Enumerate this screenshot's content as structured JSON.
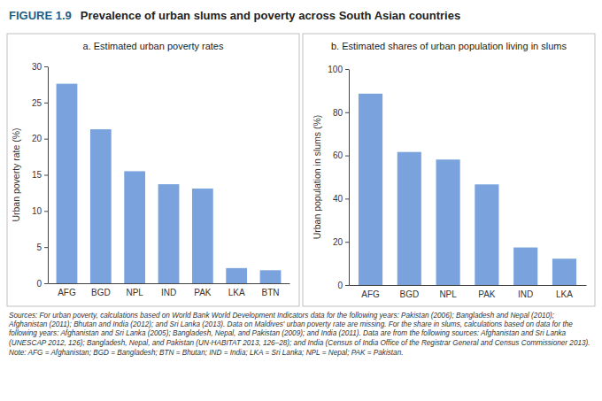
{
  "figure_number": "FIGURE 1.9",
  "figure_title": "Prevalence of urban slums and poverty across South Asian countries",
  "chart_data": [
    {
      "type": "bar",
      "title": "a. Estimated urban poverty rates",
      "y_label": "Urban poverty rate (%)",
      "categories": [
        "AFG",
        "BGD",
        "NPL",
        "IND",
        "PAK",
        "LKA",
        "BTN"
      ],
      "values": [
        27.6,
        21.3,
        15.5,
        13.7,
        13.1,
        2.1,
        1.8
      ],
      "color": "#7aa3dd",
      "ylim": [
        0,
        30
      ],
      "yticks": [
        0,
        5,
        10,
        15,
        20,
        25,
        30
      ],
      "grid": false
    },
    {
      "type": "bar",
      "title": "b. Estimated shares of urban population living in slums",
      "y_label": "Urban population in slums (%)",
      "categories": [
        "AFG",
        "BGD",
        "NPL",
        "PAK",
        "IND",
        "LKA"
      ],
      "values": [
        88.6,
        61.6,
        58.1,
        46.6,
        17.4,
        12.2
      ],
      "color": "#7aa3dd",
      "ylim": [
        0,
        100
      ],
      "yticks": [
        0,
        20,
        40,
        60,
        80,
        100
      ],
      "grid": false
    }
  ],
  "sources": "Sources: For urban poverty, calculations based on World Bank World Development Indicators data for the following years: Pakistan (2006); Bangladesh and Nepal (2010); Afghanistan (2011); Bhutan and India (2012); and Sri Lanka (2013). Data on Maldives' urban poverty rate are missing. For the share in slums, calculations based on data for the following years: Afghanistan and Sri Lanka (2005); Bangladesh, Nepal, and Pakistan (2009); and India (2011). Data are from the following sources: Afghanistan and Sri Lanka (UNESCAP 2012, 126); Bangladesh, Nepal, and Pakistan (UN-HABITAT 2013, 126–28); and India (Census of India Office of the Registrar General and Census Commissioner 2013).",
  "note": "Note: AFG = Afghanistan; BGD = Bangladesh; BTN = Bhutan; IND = India; LKA = Sri Lanka; NPL = Nepal; PAK = Pakistan."
}
